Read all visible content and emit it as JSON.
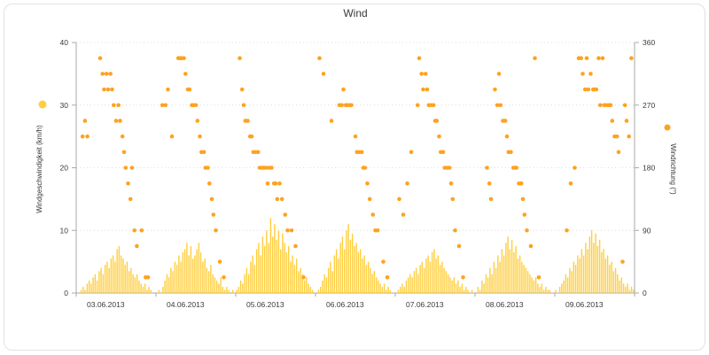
{
  "chart_data": {
    "type": "combo",
    "title": "Wind",
    "left_axis": {
      "label": "Windgeschwindigkeit (km/h)",
      "min": 0,
      "max": 40,
      "ticks": [
        0,
        10,
        20,
        30,
        40
      ]
    },
    "right_axis": {
      "label": "Windrichtung (°)",
      "min": 0,
      "max": 360,
      "ticks": [
        0,
        90,
        180,
        270,
        360
      ]
    },
    "x_labels": [
      "03.06.2013",
      "04.06.2013",
      "05.06.2013",
      "06.06.2013",
      "07.06.2013",
      "08.06.2013",
      "09.06.2013"
    ],
    "grid": "horizontal-dotted",
    "series": [
      {
        "name": "Windgeschwindigkeit",
        "type": "bar",
        "axis": "left",
        "color": "#FFCE3C",
        "values_per_day": [
          [
            0,
            0,
            0.5,
            1,
            0.5,
            1.5,
            2,
            1.5,
            2.5,
            3,
            2,
            3.5,
            4,
            3,
            4.5,
            5,
            4,
            5.5,
            6,
            5,
            7,
            7.5,
            6,
            5.5,
            4.5,
            5,
            3.5,
            4,
            3,
            2.5,
            3,
            2,
            1.5,
            1,
            1.5,
            0.5,
            1,
            0.5,
            0,
            0
          ],
          [
            0,
            0.5,
            0,
            1,
            2,
            3,
            2.5,
            4,
            3.5,
            5,
            4.5,
            6,
            5,
            6.5,
            7,
            8,
            6,
            7.5,
            5.5,
            6,
            7,
            8,
            6.5,
            5,
            5.5,
            4,
            3.5,
            4.5,
            3,
            2.5,
            2,
            1.5,
            2.5,
            1,
            0.5,
            1,
            0.5,
            0,
            0.5,
            0
          ],
          [
            0.5,
            1,
            2,
            1.5,
            3,
            4,
            3,
            5,
            6,
            4.5,
            7,
            8,
            6,
            9,
            7.5,
            10,
            8,
            12,
            9,
            11,
            8.5,
            10,
            7,
            9.5,
            8,
            6.5,
            7.5,
            5,
            6,
            4.5,
            5.5,
            3.5,
            4,
            3,
            2,
            2.5,
            1.5,
            1,
            0.5,
            0
          ],
          [
            0,
            0.5,
            1,
            2,
            3,
            2.5,
            4,
            5,
            3.5,
            6,
            7,
            5.5,
            8,
            9,
            7,
            10,
            11,
            8.5,
            9.5,
            7.5,
            8,
            6.5,
            7,
            5.5,
            6,
            4.5,
            5,
            4,
            3,
            3.5,
            2.5,
            2,
            1.5,
            1,
            1.5,
            0.5,
            1,
            0.5,
            0,
            0
          ],
          [
            0,
            0.5,
            1,
            1.5,
            1,
            2,
            2.5,
            3,
            2.5,
            3.5,
            4,
            3,
            4.5,
            5,
            4,
            5.5,
            6,
            5,
            6.5,
            7,
            5.5,
            6,
            4.5,
            5,
            4,
            3.5,
            3,
            2.5,
            2,
            2.5,
            1.5,
            2,
            1,
            1.5,
            0.5,
            1,
            0.5,
            0,
            0.5,
            0
          ],
          [
            0,
            1,
            0.5,
            2,
            1.5,
            3,
            2.5,
            4,
            3,
            5,
            4,
            6,
            5,
            7,
            6,
            8,
            9,
            7,
            8.5,
            6.5,
            7.5,
            5.5,
            6,
            5,
            4.5,
            4,
            3.5,
            3,
            2.5,
            2,
            2.5,
            1.5,
            1,
            1.5,
            0.5,
            1,
            0.5,
            0.5,
            0,
            0
          ],
          [
            0.5,
            0,
            1,
            1.5,
            2,
            3,
            2.5,
            4,
            3.5,
            5,
            4.5,
            6,
            5.5,
            7,
            6,
            8,
            7,
            9,
            10,
            8,
            9.5,
            7.5,
            8.5,
            6.5,
            7,
            5.5,
            6,
            4.5,
            5,
            3.5,
            4,
            3,
            2,
            2.5,
            1.5,
            1,
            1.5,
            0.5,
            1,
            0.5
          ]
        ]
      },
      {
        "name": "Windrichtung",
        "type": "scatter",
        "axis": "right",
        "color": "#FFA21F",
        "points": [
          [
            0.08,
            225
          ],
          [
            0.11,
            247.5
          ],
          [
            0.14,
            225
          ],
          [
            0.3,
            337.5
          ],
          [
            0.33,
            315
          ],
          [
            0.35,
            292.5
          ],
          [
            0.38,
            315
          ],
          [
            0.4,
            292.5
          ],
          [
            0.43,
            315
          ],
          [
            0.45,
            292.5
          ],
          [
            0.47,
            270
          ],
          [
            0.5,
            247.5
          ],
          [
            0.53,
            270
          ],
          [
            0.55,
            247.5
          ],
          [
            0.58,
            225
          ],
          [
            0.6,
            202.5
          ],
          [
            0.62,
            180
          ],
          [
            0.65,
            157.5
          ],
          [
            0.68,
            135
          ],
          [
            0.7,
            180
          ],
          [
            0.73,
            90
          ],
          [
            0.76,
            67.5
          ],
          [
            0.82,
            90
          ],
          [
            0.87,
            22.5
          ],
          [
            0.9,
            22.5
          ],
          [
            1.08,
            270
          ],
          [
            1.12,
            270
          ],
          [
            1.15,
            292.5
          ],
          [
            1.2,
            225
          ],
          [
            1.28,
            337.5
          ],
          [
            1.3,
            337.5
          ],
          [
            1.32,
            337.5
          ],
          [
            1.35,
            337.5
          ],
          [
            1.37,
            315
          ],
          [
            1.4,
            292.5
          ],
          [
            1.42,
            292.5
          ],
          [
            1.45,
            270
          ],
          [
            1.47,
            270
          ],
          [
            1.5,
            270
          ],
          [
            1.52,
            247.5
          ],
          [
            1.55,
            225
          ],
          [
            1.57,
            202.5
          ],
          [
            1.6,
            202.5
          ],
          [
            1.62,
            180
          ],
          [
            1.65,
            180
          ],
          [
            1.67,
            157.5
          ],
          [
            1.7,
            135
          ],
          [
            1.72,
            112.5
          ],
          [
            1.75,
            90
          ],
          [
            1.8,
            45
          ],
          [
            1.85,
            22.5
          ],
          [
            2.05,
            337.5
          ],
          [
            2.08,
            292.5
          ],
          [
            2.1,
            270
          ],
          [
            2.12,
            247.5
          ],
          [
            2.15,
            247.5
          ],
          [
            2.18,
            225
          ],
          [
            2.2,
            225
          ],
          [
            2.22,
            202.5
          ],
          [
            2.25,
            202.5
          ],
          [
            2.28,
            202.5
          ],
          [
            2.3,
            180
          ],
          [
            2.33,
            180
          ],
          [
            2.35,
            180
          ],
          [
            2.38,
            180
          ],
          [
            2.4,
            157.5
          ],
          [
            2.42,
            180
          ],
          [
            2.45,
            180
          ],
          [
            2.48,
            157.5
          ],
          [
            2.5,
            157.5
          ],
          [
            2.52,
            135
          ],
          [
            2.55,
            157.5
          ],
          [
            2.58,
            135
          ],
          [
            2.62,
            112.5
          ],
          [
            2.65,
            90
          ],
          [
            2.7,
            90
          ],
          [
            2.75,
            67.5
          ],
          [
            2.85,
            22.5
          ],
          [
            3.05,
            337.5
          ],
          [
            3.1,
            315
          ],
          [
            3.2,
            247.5
          ],
          [
            3.3,
            270
          ],
          [
            3.33,
            270
          ],
          [
            3.35,
            292.5
          ],
          [
            3.38,
            270
          ],
          [
            3.4,
            270
          ],
          [
            3.43,
            270
          ],
          [
            3.45,
            270
          ],
          [
            3.5,
            225
          ],
          [
            3.52,
            202.5
          ],
          [
            3.55,
            202.5
          ],
          [
            3.58,
            202.5
          ],
          [
            3.6,
            180
          ],
          [
            3.62,
            180
          ],
          [
            3.65,
            157.5
          ],
          [
            3.68,
            135
          ],
          [
            3.72,
            112.5
          ],
          [
            3.75,
            90
          ],
          [
            3.78,
            90
          ],
          [
            3.85,
            45
          ],
          [
            3.9,
            22.5
          ],
          [
            4.05,
            135
          ],
          [
            4.1,
            112.5
          ],
          [
            4.15,
            157.5
          ],
          [
            4.2,
            202.5
          ],
          [
            4.28,
            270
          ],
          [
            4.3,
            337.5
          ],
          [
            4.33,
            315
          ],
          [
            4.35,
            292.5
          ],
          [
            4.38,
            315
          ],
          [
            4.4,
            292.5
          ],
          [
            4.42,
            270
          ],
          [
            4.45,
            270
          ],
          [
            4.48,
            270
          ],
          [
            4.5,
            247.5
          ],
          [
            4.52,
            247.5
          ],
          [
            4.55,
            225
          ],
          [
            4.57,
            202.5
          ],
          [
            4.6,
            202.5
          ],
          [
            4.62,
            180
          ],
          [
            4.65,
            180
          ],
          [
            4.68,
            180
          ],
          [
            4.7,
            157.5
          ],
          [
            4.72,
            135
          ],
          [
            4.75,
            90
          ],
          [
            4.8,
            67.5
          ],
          [
            4.85,
            22.5
          ],
          [
            5.15,
            180
          ],
          [
            5.18,
            157.5
          ],
          [
            5.2,
            135
          ],
          [
            5.25,
            292.5
          ],
          [
            5.28,
            270
          ],
          [
            5.3,
            315
          ],
          [
            5.32,
            270
          ],
          [
            5.35,
            247.5
          ],
          [
            5.38,
            247.5
          ],
          [
            5.4,
            225
          ],
          [
            5.42,
            202.5
          ],
          [
            5.45,
            202.5
          ],
          [
            5.48,
            180
          ],
          [
            5.5,
            180
          ],
          [
            5.52,
            180
          ],
          [
            5.55,
            157.5
          ],
          [
            5.58,
            157.5
          ],
          [
            5.6,
            135
          ],
          [
            5.62,
            112.5
          ],
          [
            5.65,
            90
          ],
          [
            5.7,
            67.5
          ],
          [
            5.75,
            337.5
          ],
          [
            5.8,
            22.5
          ],
          [
            6.15,
            90
          ],
          [
            6.2,
            157.5
          ],
          [
            6.25,
            180
          ],
          [
            6.3,
            337.5
          ],
          [
            6.33,
            337.5
          ],
          [
            6.35,
            315
          ],
          [
            6.38,
            292.5
          ],
          [
            6.4,
            337.5
          ],
          [
            6.42,
            292.5
          ],
          [
            6.45,
            315
          ],
          [
            6.48,
            292.5
          ],
          [
            6.5,
            292.5
          ],
          [
            6.52,
            292.5
          ],
          [
            6.55,
            337.5
          ],
          [
            6.57,
            270
          ],
          [
            6.6,
            337.5
          ],
          [
            6.62,
            270
          ],
          [
            6.65,
            270
          ],
          [
            6.68,
            270
          ],
          [
            6.7,
            270
          ],
          [
            6.72,
            247.5
          ],
          [
            6.75,
            225
          ],
          [
            6.78,
            225
          ],
          [
            6.8,
            202.5
          ],
          [
            6.85,
            45
          ],
          [
            6.88,
            270
          ],
          [
            6.9,
            247.5
          ],
          [
            6.93,
            225
          ],
          [
            6.96,
            337.5
          ]
        ]
      }
    ]
  },
  "style": {
    "grid_color": "#dcdcdc",
    "axis_color": "#a8a8a8",
    "text_color": "#3a3a3a"
  }
}
